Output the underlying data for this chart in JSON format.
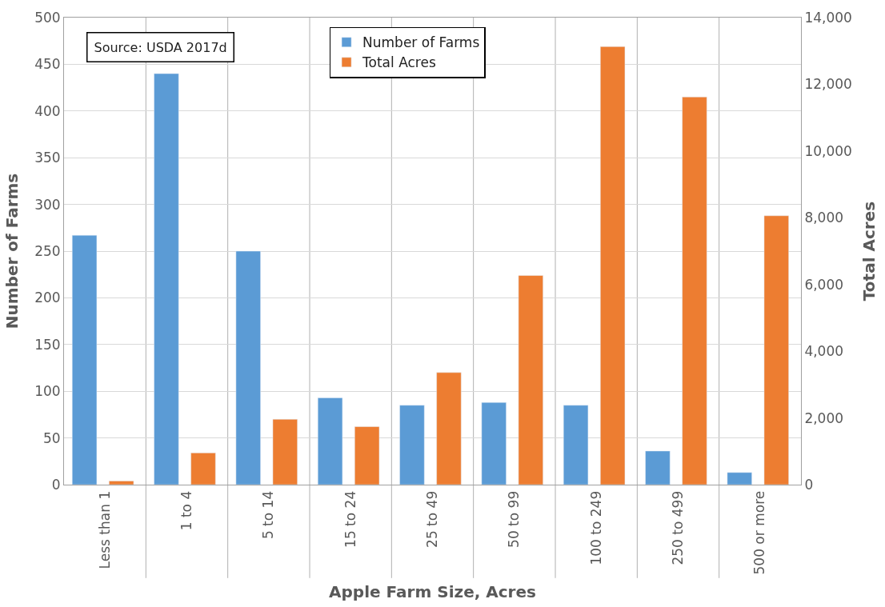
{
  "chart_data": {
    "type": "bar",
    "xlabel": "Apple Farm Size, Acres",
    "ylabel": "Number of Farms",
    "y2label": "Total Acres",
    "categories": [
      "Less than 1",
      "1 to 4",
      "5 to 14",
      "15 to 24",
      "25 to 49",
      "50 to 99",
      "100 to 249",
      "250 to 499",
      "500 or more"
    ],
    "series": [
      {
        "name": "Number of Farms",
        "color": "#5b9bd5",
        "values": [
          267,
          440,
          250,
          93,
          85,
          88,
          85,
          36,
          13
        ]
      },
      {
        "name": "Total Acres",
        "color": "#ed7d31",
        "axis": "y2",
        "values": [
          110,
          950,
          1960,
          1740,
          3360,
          6270,
          13130,
          11620,
          8060
        ]
      }
    ],
    "ylim": [
      0,
      500
    ],
    "yticks": [
      0,
      50,
      100,
      150,
      200,
      250,
      300,
      350,
      400,
      450,
      500
    ],
    "y2lim": [
      0,
      14000
    ],
    "y2ticks": [
      {
        "value": 0,
        "label": "0"
      },
      {
        "value": 2000,
        "label": "2,000"
      },
      {
        "value": 4000,
        "label": "4,000"
      },
      {
        "value": 6000,
        "label": "6,000"
      },
      {
        "value": 8000,
        "label": "8,000"
      },
      {
        "value": 10000,
        "label": "10,000"
      },
      {
        "value": 12000,
        "label": "12,000"
      },
      {
        "value": 14000,
        "label": "14,000"
      }
    ],
    "annotations": [
      "Source: USDA 2017d"
    ],
    "grid": true,
    "legend": "top"
  }
}
